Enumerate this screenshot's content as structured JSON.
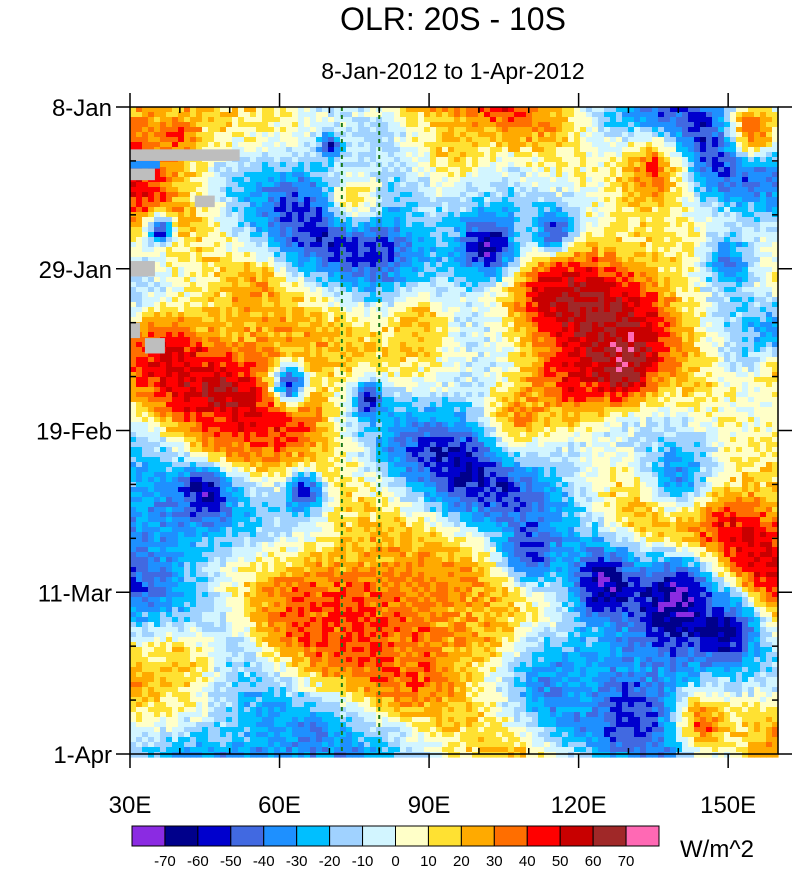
{
  "chart_data": {
    "type": "heatmap",
    "title": "OLR: 20S - 10S",
    "subtitle": "8-Jan-2012 to 1-Apr-2012",
    "units": "W/m^2",
    "x_range": [
      30,
      160
    ],
    "x_ticks": [
      {
        "value": 30,
        "label": "30E"
      },
      {
        "value": 60,
        "label": "60E"
      },
      {
        "value": 90,
        "label": "90E"
      },
      {
        "value": 120,
        "label": "120E"
      },
      {
        "value": 150,
        "label": "150E"
      }
    ],
    "y_range_days": [
      0,
      84
    ],
    "y_ticks": [
      {
        "value": 0,
        "label": "8-Jan"
      },
      {
        "value": 21,
        "label": "29-Jan"
      },
      {
        "value": 42,
        "label": "19-Feb"
      },
      {
        "value": 63,
        "label": "11-Mar"
      },
      {
        "value": 84,
        "label": "1-Apr"
      }
    ],
    "reference_lines_lon": [
      72.5,
      80
    ],
    "colorbar": {
      "levels": [
        -70,
        -60,
        -50,
        -40,
        -30,
        -20,
        -10,
        0,
        10,
        20,
        30,
        40,
        50,
        60,
        70
      ],
      "colors": [
        "#8b2be2",
        "#00008b",
        "#0000cd",
        "#4169e1",
        "#1e90ff",
        "#00bfff",
        "#a0d2ff",
        "#d2f5ff",
        "#ffffc8",
        "#ffe132",
        "#ffaa00",
        "#ff6e00",
        "#ff0000",
        "#c80000",
        "#a02828",
        "#ff69b4"
      ]
    },
    "missing_color": "#bebebe",
    "features": [
      {
        "lon": 70,
        "day": 5,
        "value": -65,
        "r": 1.5
      },
      {
        "lon": 102,
        "day": 18,
        "value": -70,
        "r": 5
      },
      {
        "lon": 115,
        "day": 16,
        "value": -55,
        "r": 3
      },
      {
        "lon": 128,
        "day": 34,
        "value": 75,
        "r": 4
      },
      {
        "lon": 125,
        "day": 31,
        "value": 55,
        "r": 6
      },
      {
        "lon": 118,
        "day": 35,
        "value": 45,
        "r": 7
      },
      {
        "lon": 38,
        "day": 32,
        "value": 45,
        "r": 5
      },
      {
        "lon": 155,
        "day": 3,
        "value": 45,
        "r": 4
      },
      {
        "lon": 140,
        "day": 64,
        "value": -70,
        "r": 7
      },
      {
        "lon": 125,
        "day": 62,
        "value": -65,
        "r": 5
      },
      {
        "lon": 150,
        "day": 68,
        "value": -60,
        "r": 4
      },
      {
        "lon": 70,
        "day": 66,
        "value": 30,
        "r": 8
      },
      {
        "lon": 85,
        "day": 70,
        "value": 28,
        "r": 7
      },
      {
        "lon": 100,
        "day": 68,
        "value": 25,
        "r": 6
      },
      {
        "lon": 95,
        "day": 5,
        "value": 20,
        "r": 6
      },
      {
        "lon": 63,
        "day": 40,
        "value": 35,
        "r": 4
      },
      {
        "lon": 48,
        "day": 43,
        "value": 35,
        "r": 4
      },
      {
        "lon": 45,
        "day": 50,
        "value": -60,
        "r": 3.5
      },
      {
        "lon": 65,
        "day": 50,
        "value": -55,
        "r": 3
      },
      {
        "lon": 98,
        "day": 46,
        "value": -50,
        "r": 3
      },
      {
        "lon": 62,
        "day": 36,
        "value": -60,
        "r": 2.5
      },
      {
        "lon": 78,
        "day": 38,
        "value": -55,
        "r": 2.5
      },
      {
        "lon": 36,
        "day": 16,
        "value": -55,
        "r": 2
      },
      {
        "lon": 110,
        "day": 58,
        "value": -50,
        "r": 4
      },
      {
        "lon": 140,
        "day": 48,
        "value": -40,
        "r": 5
      },
      {
        "lon": 150,
        "day": 20,
        "value": -40,
        "r": 4
      },
      {
        "lon": 135,
        "day": 8,
        "value": 40,
        "r": 5
      },
      {
        "lon": 145,
        "day": 80,
        "value": 40,
        "r": 4
      },
      {
        "lon": 108,
        "day": 40,
        "value": 30,
        "r": 5
      },
      {
        "lon": 88,
        "day": 28,
        "value": 25,
        "r": 5
      },
      {
        "lon": 40,
        "day": 72,
        "value": 20,
        "r": 5
      },
      {
        "lon": 35,
        "day": 55,
        "value": -30,
        "r": 4
      },
      {
        "lon": 55,
        "day": 24,
        "value": 25,
        "r": 4
      },
      {
        "lon": 75,
        "day": 12,
        "value": 20,
        "r": 4
      },
      {
        "lon": 120,
        "day": 76,
        "value": -20,
        "r": 5
      },
      {
        "lon": 160,
        "day": 35,
        "value": 25,
        "r": 4
      },
      {
        "lon": 40,
        "day": 4,
        "value": 35,
        "r": 3
      }
    ]
  }
}
